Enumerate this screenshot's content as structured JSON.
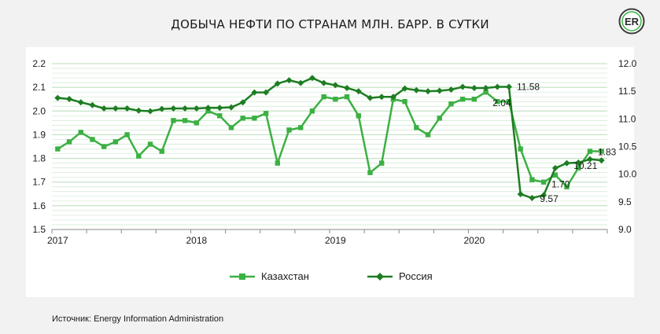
{
  "header": {
    "title": "ДОБЫЧА НЕФТИ ПО СТРАНАМ МЛН. БАРР. В СУТКИ"
  },
  "footer": {
    "source": "Источник: Energy Information Administration"
  },
  "logo": {
    "icon": "er-logo-icon",
    "text": "ER"
  },
  "colors": {
    "kazakhstan": "#3cb043",
    "russia": "#1e7d22",
    "grid": "#cfe8cf",
    "panel": "#ffffff",
    "background": "#f2f2f2"
  },
  "chart_data": {
    "type": "line",
    "title": "ДОБЫЧА НЕФТИ ПО СТРАНАМ МЛН. БАРР. В СУТКИ",
    "x_tick_labels": [
      "2017",
      "2018",
      "2019",
      "2020"
    ],
    "x_tick_month_index": [
      0,
      12,
      24,
      36
    ],
    "y_left": {
      "ylim": [
        1.5,
        2.2
      ],
      "ticks": [
        "1.5",
        "1.6",
        "1.7",
        "1.8",
        "1.9",
        "2.0",
        "2.1",
        "2.2"
      ]
    },
    "y_right": {
      "ylim": [
        9.0,
        12.0
      ],
      "ticks": [
        "9.0",
        "9.5",
        "10.0",
        "10.5",
        "11.0",
        "11.5",
        "12.0"
      ]
    },
    "grid": "horizontal",
    "legend": {
      "placement": "bottom"
    },
    "series": [
      {
        "name": "Казахстан",
        "axis": "left",
        "marker": "square",
        "values": [
          1.84,
          1.87,
          1.91,
          1.88,
          1.85,
          1.87,
          1.9,
          1.81,
          1.86,
          1.83,
          1.96,
          1.96,
          1.95,
          2.0,
          1.98,
          1.93,
          1.97,
          1.97,
          1.99,
          1.78,
          1.92,
          1.93,
          2.0,
          2.06,
          2.05,
          2.06,
          1.98,
          1.74,
          1.78,
          2.05,
          2.04,
          1.93,
          1.9,
          1.97,
          2.03,
          2.05,
          2.05,
          2.08,
          2.04,
          2.04,
          1.84,
          1.71,
          1.7,
          1.73,
          1.68,
          1.76,
          1.83,
          1.83
        ]
      },
      {
        "name": "Россия",
        "axis": "right",
        "marker": "diamond",
        "values": [
          11.38,
          11.36,
          11.3,
          11.25,
          11.19,
          11.19,
          11.19,
          11.15,
          11.14,
          11.18,
          11.19,
          11.19,
          11.19,
          11.2,
          11.2,
          11.21,
          11.3,
          11.48,
          11.48,
          11.64,
          11.7,
          11.65,
          11.74,
          11.65,
          11.61,
          11.56,
          11.5,
          11.38,
          11.4,
          11.4,
          11.55,
          11.52,
          11.5,
          11.51,
          11.53,
          11.58,
          11.56,
          11.56,
          11.58,
          11.58,
          9.64,
          9.57,
          9.62,
          10.11,
          10.2,
          10.21,
          10.27,
          10.25
        ]
      }
    ],
    "annotations": [
      {
        "series": "Россия",
        "index": 39,
        "text": "11.58"
      },
      {
        "series": "Казахстан",
        "index": 38,
        "text": "2.04"
      },
      {
        "series": "Россия",
        "index": 41,
        "text": "9.57"
      },
      {
        "series": "Казахстан",
        "index": 42,
        "text": "1.70"
      },
      {
        "series": "Казахстан",
        "index": 46,
        "text": "1.83"
      },
      {
        "series": "Россия",
        "index": 45,
        "text": "10.21"
      }
    ]
  }
}
